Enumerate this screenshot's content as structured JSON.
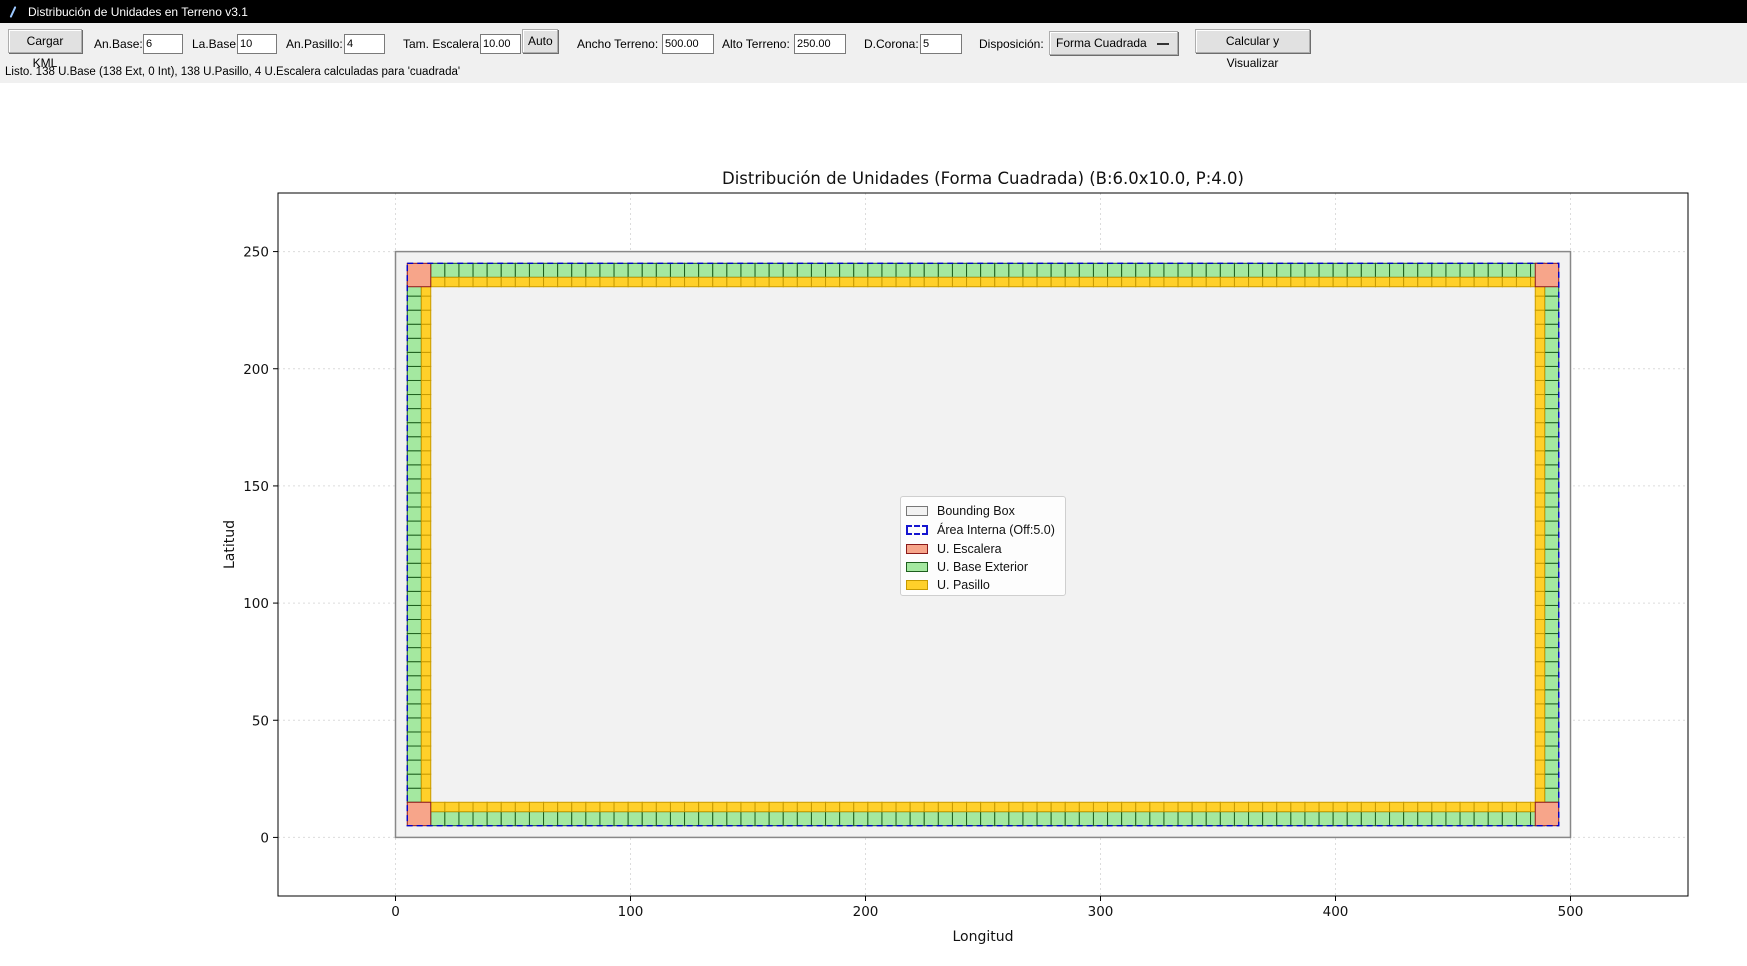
{
  "window": {
    "title": "Distribución de Unidades en Terreno v3.1"
  },
  "toolbar": {
    "load_kml": "Cargar KML",
    "base_width_label": "An.Base:",
    "base_width_value": "6",
    "base_length_label": "La.Base:",
    "base_length_value": "10",
    "corridor_width_label": "An.Pasillo:",
    "corridor_width_value": "4",
    "stair_size_label": "Tam. Escalera:",
    "stair_size_value": "10.00",
    "auto_button": "Auto",
    "land_width_label": "Ancho Terreno:",
    "land_width_value": "500.00",
    "land_height_label": "Alto Terreno:",
    "land_height_value": "250.00",
    "crown_label": "D.Corona:",
    "crown_value": "5",
    "layout_label": "Disposición:",
    "layout_value": "Forma Cuadrada",
    "calculate_button": "Calcular y Visualizar"
  },
  "status": {
    "text": "Listo. 138 U.Base (138 Ext, 0 Int), 138 U.Pasillo, 4 U.Escalera calculadas para 'cuadrada'"
  },
  "chart_data": {
    "type": "layout",
    "title": "Distribución de Unidades (Forma Cuadrada) (B:6.0x10.0, P:4.0)",
    "xlabel": "Longitud",
    "ylabel": "Latitud",
    "xlim": [
      -50,
      550
    ],
    "ylim": [
      -25,
      275
    ],
    "xticks": [
      0,
      100,
      200,
      300,
      400,
      500
    ],
    "yticks": [
      0,
      50,
      100,
      150,
      200,
      250
    ],
    "grid": true,
    "legend_position": "center",
    "bounding_box": {
      "x0": 0,
      "y0": 0,
      "x1": 500,
      "y1": 250,
      "color": "#f2f2f2",
      "edge": "#888888"
    },
    "inner_area": {
      "offset": 5.0,
      "x0": 5,
      "y0": 5,
      "x1": 495,
      "y1": 245,
      "edge": "#0000cc"
    },
    "base_unit": {
      "width": 6.0,
      "length": 10.0,
      "color": "#a4e8a0",
      "edge": "#1d5e1d"
    },
    "corridor_width": 4.0,
    "corridor_color": "#ffd02a",
    "corridor_edge": "#c79a00",
    "stair_size": 10.0,
    "stair_color": "#f7a58a",
    "stair_edge": "#8b1a1a",
    "counts": {
      "base_exterior": 138,
      "base_interior": 0,
      "corridor": 138,
      "stairs": 4
    },
    "legend": [
      {
        "label": "Bounding Box",
        "swatch": "bbox"
      },
      {
        "label": "Área Interna (Off:5.0)",
        "swatch": "inner"
      },
      {
        "label": "U. Escalera",
        "swatch": "stair"
      },
      {
        "label": "U. Base Exterior",
        "swatch": "base"
      },
      {
        "label": "U. Pasillo",
        "swatch": "corridor"
      }
    ]
  }
}
